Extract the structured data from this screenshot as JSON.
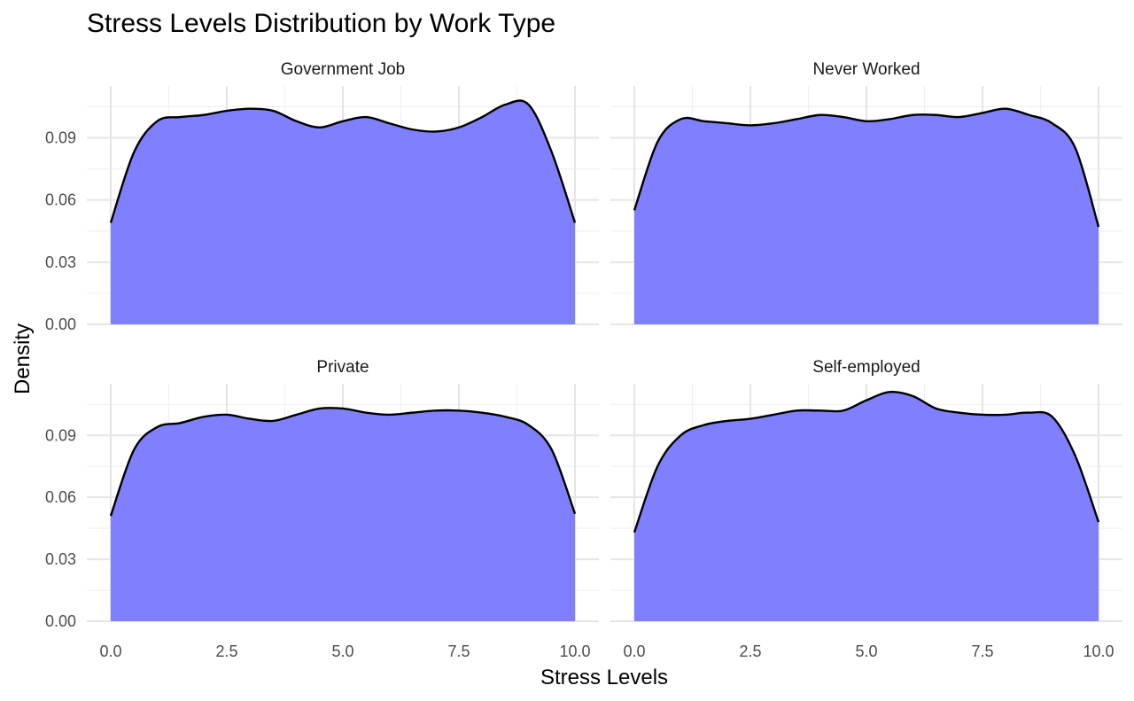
{
  "chart_data": {
    "type": "area",
    "title": "Stress Levels Distribution by Work Type",
    "xlabel": "Stress Levels",
    "ylabel": "Density",
    "xlim": [
      0,
      10
    ],
    "ylim": [
      0,
      0.115
    ],
    "x_ticks": [
      "0.0",
      "2.5",
      "5.0",
      "7.5",
      "10.0"
    ],
    "x_tick_values": [
      0,
      2.5,
      5,
      7.5,
      10
    ],
    "y_ticks": [
      "0.00",
      "0.03",
      "0.06",
      "0.09"
    ],
    "y_tick_values": [
      0,
      0.03,
      0.06,
      0.09
    ],
    "grid": true,
    "fill_color": "#8080ff",
    "line_color": "#000000",
    "facets": [
      {
        "name": "Government Job",
        "x": [
          0,
          0.5,
          1,
          1.5,
          2,
          2.5,
          3,
          3.5,
          4,
          4.5,
          5,
          5.5,
          6,
          6.5,
          7,
          7.5,
          8,
          8.5,
          9,
          9.5,
          10
        ],
        "y": [
          0.049,
          0.083,
          0.098,
          0.1,
          0.101,
          0.103,
          0.104,
          0.103,
          0.098,
          0.095,
          0.098,
          0.1,
          0.097,
          0.094,
          0.093,
          0.095,
          0.1,
          0.106,
          0.106,
          0.083,
          0.049
        ]
      },
      {
        "name": "Never Worked",
        "x": [
          0,
          0.5,
          1,
          1.5,
          2,
          2.5,
          3,
          3.5,
          4,
          4.5,
          5,
          5.5,
          6,
          6.5,
          7,
          7.5,
          8,
          8.5,
          9,
          9.5,
          10
        ],
        "y": [
          0.055,
          0.088,
          0.099,
          0.098,
          0.097,
          0.096,
          0.097,
          0.099,
          0.101,
          0.1,
          0.098,
          0.099,
          0.101,
          0.101,
          0.1,
          0.102,
          0.104,
          0.101,
          0.097,
          0.085,
          0.047
        ]
      },
      {
        "name": "Private",
        "x": [
          0,
          0.5,
          1,
          1.5,
          2,
          2.5,
          3,
          3.5,
          4,
          4.5,
          5,
          5.5,
          6,
          6.5,
          7,
          7.5,
          8,
          8.5,
          9,
          9.5,
          10
        ],
        "y": [
          0.051,
          0.083,
          0.094,
          0.096,
          0.099,
          0.1,
          0.098,
          0.097,
          0.1,
          0.103,
          0.103,
          0.101,
          0.1,
          0.101,
          0.102,
          0.102,
          0.101,
          0.099,
          0.095,
          0.083,
          0.052
        ]
      },
      {
        "name": "Self-employed",
        "x": [
          0,
          0.5,
          1,
          1.5,
          2,
          2.5,
          3,
          3.5,
          4,
          4.5,
          5,
          5.5,
          6,
          6.5,
          7,
          7.5,
          8,
          8.5,
          9,
          9.5,
          10
        ],
        "y": [
          0.043,
          0.075,
          0.09,
          0.095,
          0.097,
          0.098,
          0.1,
          0.102,
          0.102,
          0.102,
          0.107,
          0.111,
          0.109,
          0.103,
          0.101,
          0.1,
          0.1,
          0.101,
          0.099,
          0.08,
          0.048
        ]
      }
    ]
  }
}
